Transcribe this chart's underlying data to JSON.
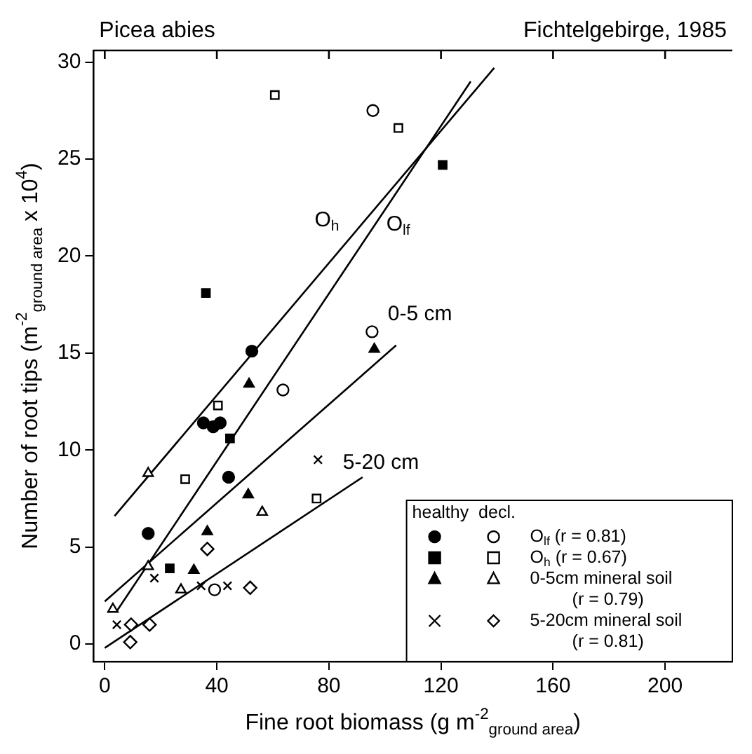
{
  "chart_data": {
    "type": "scatter",
    "title": "Picea abies",
    "subtitle": "Fichtelgebirge, 1985",
    "xlabel": "Fine root biomass (g m$^{-2}$$_{ground area}$)",
    "ylabel": "Number of root tips (m$^{-2}$$_{ground area}$ x 10$^{4}$)",
    "legend_title": "healthy  decl.",
    "xlim": [
      -4,
      224
    ],
    "xticks": [
      0,
      40,
      80,
      120,
      160,
      200
    ],
    "ylim": [
      -0.9,
      30.6
    ],
    "yticks": [
      0,
      5,
      10,
      15,
      20,
      25,
      30
    ],
    "grid": false,
    "legend": "bottom right",
    "series": [
      {
        "type": "scatter",
        "color": "#000000",
        "marker": "circle",
        "x": [
          15.5,
          35.2,
          38.7,
          41.2,
          52.5,
          44.2
        ],
        "values": [
          5.7,
          11.4,
          11.2,
          11.4,
          15.1,
          8.6
        ]
      },
      {
        "type": "scatter",
        "name": "O$_{lf}$ (r = 0.81)",
        "color": "#ffffff",
        "marker": "circle",
        "x": [
          95.7,
          95.4,
          63.6,
          39.2
        ],
        "values": [
          27.5,
          16.1,
          13.1,
          2.8
        ]
      },
      {
        "type": "scatter",
        "color": "#000000",
        "marker": "square",
        "x": [
          36.1,
          120.6,
          44.7,
          23.2
        ],
        "values": [
          18.1,
          24.7,
          10.6,
          3.9
        ]
      },
      {
        "type": "scatter",
        "name": "O$_{h}$ (r = 0.67)",
        "color": "#ffffff",
        "marker": "square",
        "x": [
          60.7,
          104.8,
          40.4,
          28.7,
          75.6
        ],
        "values": [
          28.3,
          26.6,
          12.3,
          8.5,
          7.5
        ]
      },
      {
        "type": "scatter",
        "color": "#000000",
        "marker": "triangle",
        "x": [
          96.2,
          51.5,
          51.2,
          36.6,
          31.8
        ],
        "values": [
          15.2,
          13.4,
          7.7,
          5.8,
          3.8
        ]
      },
      {
        "type": "scatter",
        "name": "0-5cm mineral soil (r = 0.79)",
        "color": "#ffffff",
        "marker": "triangle",
        "x": [
          15.5,
          56.2,
          15.5,
          27.2,
          2.9
        ],
        "values": [
          8.8,
          6.8,
          4.0,
          2.8,
          1.8
        ]
      },
      {
        "type": "scatter",
        "color": "#000000",
        "marker": "cross",
        "x": [
          76.1,
          17.7,
          34.4,
          43.8,
          4.3
        ],
        "values": [
          9.5,
          3.4,
          3.0,
          3.0,
          1.0
        ]
      },
      {
        "type": "scatter",
        "name": "5-20cm mineral soil (r = 0.81)",
        "color": "#ffffff",
        "marker": "diamond",
        "x": [
          36.6,
          51.9,
          16.0,
          9.4,
          9.1
        ],
        "values": [
          4.9,
          2.9,
          1.0,
          1.0,
          0.1
        ]
      },
      {
        "type": "line",
        "name": "O$_{h}$",
        "color": "#000000",
        "x": [
          3.5,
          139
        ],
        "values": [
          6.6,
          29.7
        ]
      },
      {
        "type": "line",
        "name": "O$_{lf}$",
        "color": "#000000",
        "x": [
          4.3,
          130.6
        ],
        "values": [
          1.7,
          29.0
        ]
      },
      {
        "type": "line",
        "name": "0-5 cm",
        "color": "#000000",
        "x": [
          0,
          104
        ],
        "values": [
          2.2,
          15.4
        ]
      },
      {
        "type": "line",
        "name": "5-20 cm",
        "color": "#000000",
        "x": [
          0,
          92
        ],
        "values": [
          -0.2,
          8.6
        ]
      }
    ]
  }
}
